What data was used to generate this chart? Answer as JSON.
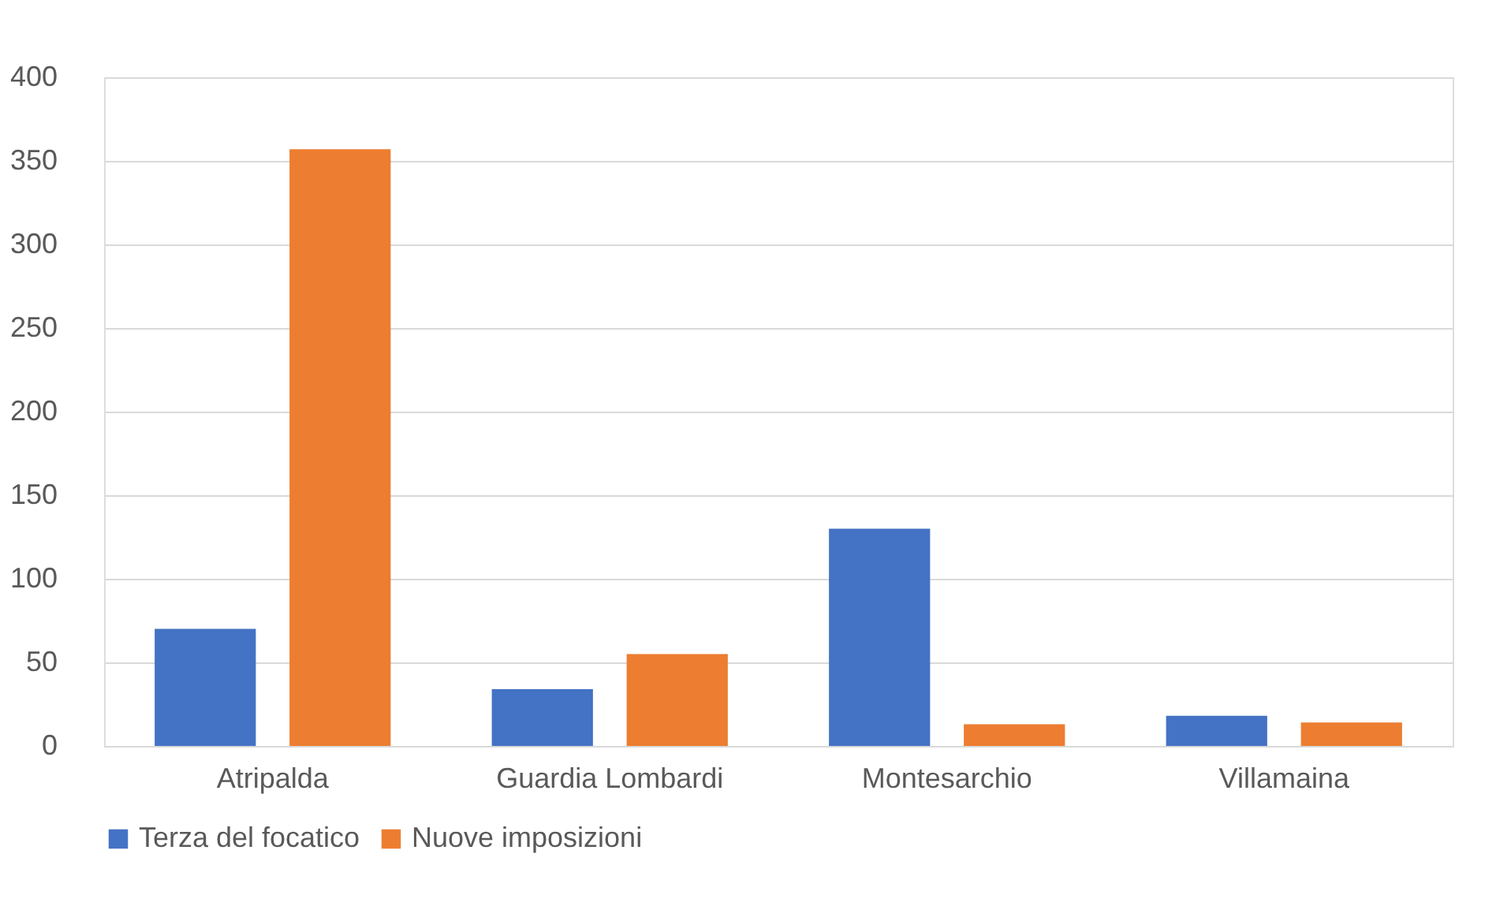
{
  "chart_data": {
    "type": "bar",
    "categories": [
      "Atripalda",
      "Guardia Lombardi",
      "Montesarchio",
      "Villamaina"
    ],
    "series": [
      {
        "name": "Terza del focatico",
        "color": "#4472c4",
        "values": [
          70,
          34,
          130,
          18
        ]
      },
      {
        "name": "Nuove imposizioni",
        "color": "#ed7d31",
        "values": [
          357,
          55,
          13,
          14
        ]
      }
    ],
    "ylim": [
      0,
      400
    ],
    "yticks": [
      0,
      50,
      100,
      150,
      200,
      250,
      300,
      350,
      400
    ],
    "grid": "y",
    "legend": "bottom"
  }
}
